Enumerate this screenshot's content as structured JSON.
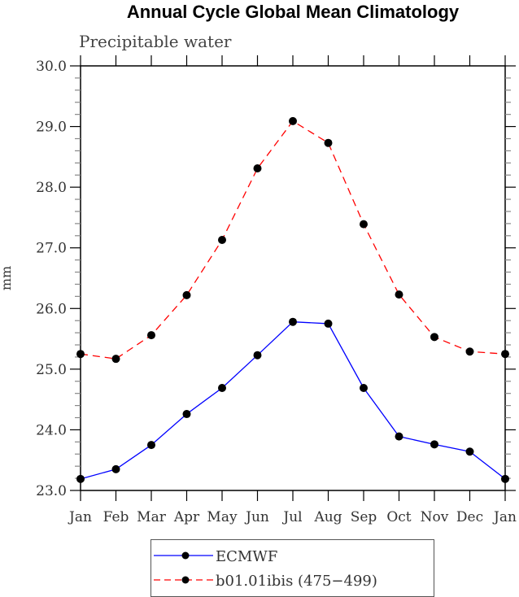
{
  "chart_data": {
    "type": "line",
    "title": "Annual Cycle Global Mean Climatology",
    "subtitle": "Precipitable water",
    "xlabel": "",
    "ylabel": "mm",
    "categories": [
      "Jan",
      "Feb",
      "Mar",
      "Apr",
      "May",
      "Jun",
      "Jul",
      "Aug",
      "Sep",
      "Oct",
      "Nov",
      "Dec",
      "Jan"
    ],
    "ylim": [
      23.0,
      30.0
    ],
    "yticks": [
      "23.0",
      "24.0",
      "25.0",
      "26.0",
      "27.0",
      "28.0",
      "29.0",
      "30.0"
    ],
    "grid": false,
    "legend_position": "bottom-center",
    "series": [
      {
        "name": "ECMWF",
        "color": "#0000ff",
        "dash": "solid",
        "marker": "circle",
        "values": [
          23.19,
          23.35,
          23.75,
          24.26,
          24.69,
          25.23,
          25.78,
          25.75,
          24.69,
          23.89,
          23.76,
          23.64,
          23.19
        ]
      },
      {
        "name": "b01.01ibis (475−499)",
        "color": "#ff0000",
        "dash": "dashed",
        "marker": "circle",
        "values": [
          25.25,
          25.17,
          25.56,
          26.22,
          27.13,
          28.31,
          29.09,
          28.73,
          27.39,
          26.23,
          25.53,
          25.29,
          25.25
        ]
      }
    ]
  }
}
